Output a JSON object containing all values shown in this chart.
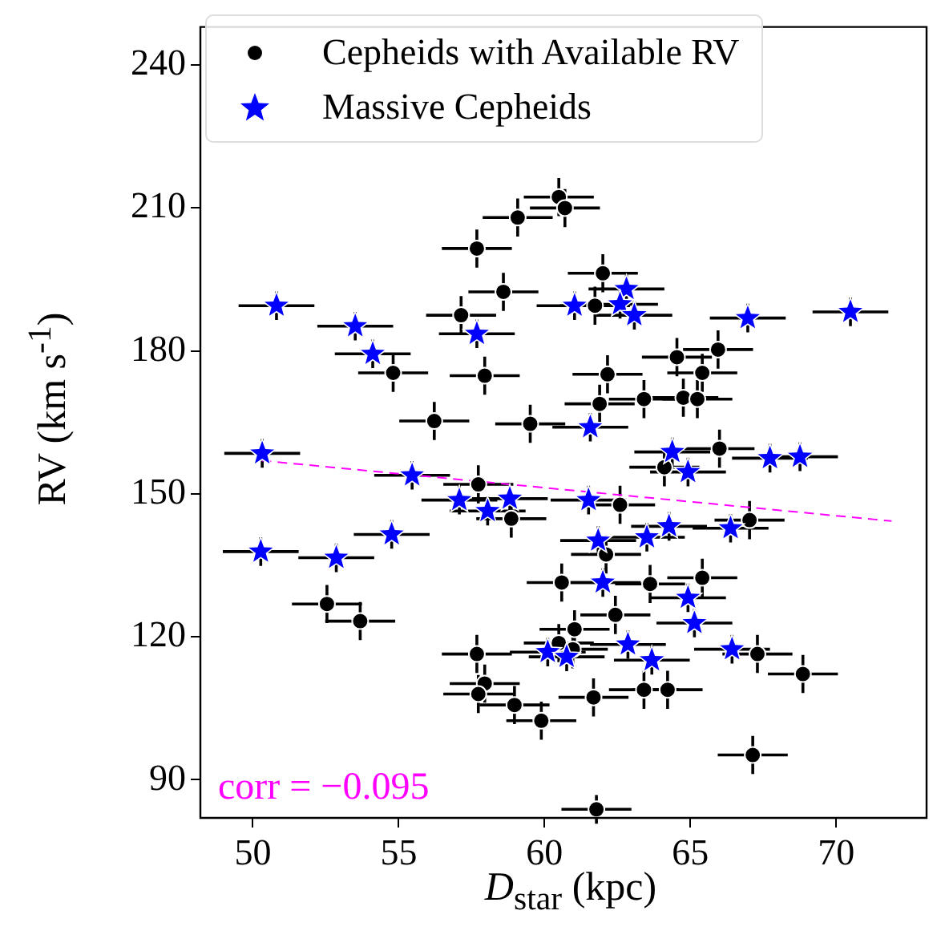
{
  "chart_data": {
    "type": "scatter",
    "xlabel": "D$_{star}$ (kpc)",
    "ylabel": "RV (km s$^{-1}$)",
    "xlim": [
      48.2,
      73.1
    ],
    "xticks": [
      50,
      55,
      60,
      65,
      70
    ],
    "ylim": [
      82,
      248
    ],
    "yticks": [
      90,
      120,
      150,
      180,
      210,
      240
    ],
    "legend": "top left",
    "annotations": [
      "corr = −0.095"
    ],
    "series": [
      {
        "name": "Cepheids with Available RV",
        "marker": "circle",
        "color": "#000000",
        "x": [
          60.49,
          60.7,
          59.08,
          57.68,
          58.59,
          57.14,
          62.0,
          61.73,
          57.95,
          54.81,
          64.54,
          65.95,
          65.41,
          62.16,
          61.89,
          63.41,
          64.76,
          65.24,
          56.22,
          59.51,
          66.0,
          64.11,
          57.73,
          58.86,
          62.59,
          67.03,
          52.54,
          53.68,
          60.59,
          62.11,
          63.62,
          65.41,
          62.43,
          61.03,
          60.49,
          60.97,
          67.3,
          68.86,
          57.68,
          57.95,
          57.73,
          58.97,
          59.89,
          61.68,
          63.41,
          64.22,
          67.14,
          61.78
        ],
        "values": [
          212.3,
          210.0,
          208.0,
          201.5,
          192.4,
          187.5,
          196.3,
          189.5,
          174.8,
          175.4,
          178.7,
          180.3,
          175.4,
          175.1,
          168.9,
          169.9,
          170.2,
          169.9,
          165.3,
          164.7,
          159.5,
          155.6,
          152.0,
          144.8,
          147.7,
          144.5,
          126.9,
          123.3,
          131.4,
          137.3,
          131.1,
          132.4,
          124.6,
          121.6,
          118.7,
          117.4,
          116.4,
          112.2,
          116.4,
          110.2,
          108.0,
          105.7,
          102.4,
          107.3,
          108.9,
          108.9,
          95.2,
          83.8
        ],
        "errors": [
          4,
          4,
          4,
          4,
          4,
          4,
          4,
          4,
          4,
          4,
          4,
          4,
          4,
          4,
          4,
          4,
          4,
          4,
          4,
          4,
          4,
          4,
          4,
          4,
          4,
          4,
          4,
          4,
          4,
          4,
          4,
          4,
          4,
          4,
          4,
          4,
          4,
          4,
          4,
          4,
          4,
          4,
          4,
          4,
          4,
          4,
          4,
          3
        ],
        "xerrors": [
          1.2,
          1.2,
          1.2,
          1.2,
          1.2,
          1.2,
          1.2,
          1.2,
          1.2,
          1.2,
          1.2,
          1.2,
          1.2,
          1.2,
          1.2,
          1.2,
          1.2,
          1.2,
          1.2,
          1.2,
          1.2,
          1.2,
          1.2,
          1.2,
          1.2,
          1.2,
          1.2,
          1.2,
          1.2,
          1.2,
          1.2,
          1.2,
          1.2,
          1.2,
          1.2,
          1.2,
          1.2,
          1.2,
          1.2,
          1.2,
          1.2,
          1.2,
          1.2,
          1.2,
          1.2,
          1.2,
          1.2,
          1.2
        ]
      },
      {
        "name": "Massive Cepheids",
        "marker": "star",
        "color": "#0000ff",
        "x": [
          50.81,
          53.51,
          54.11,
          57.68,
          50.32,
          55.46,
          62.81,
          61.03,
          62.59,
          63.08,
          66.97,
          70.49,
          61.57,
          64.38,
          64.92,
          67.73,
          68.76,
          57.08,
          58.05,
          58.81,
          54.76,
          50.27,
          52.86,
          60.11,
          61.51,
          64.27,
          63.51,
          61.84,
          66.38,
          62.0,
          64.92,
          65.14,
          62.86,
          60.76,
          63.68,
          66.43
        ],
        "values": [
          189.5,
          185.2,
          179.4,
          183.6,
          158.5,
          153.9,
          193.0,
          189.5,
          189.8,
          187.5,
          186.9,
          188.2,
          164.0,
          158.8,
          154.6,
          157.5,
          157.8,
          148.7,
          146.4,
          149.0,
          141.5,
          137.9,
          136.6,
          116.8,
          148.7,
          143.2,
          140.9,
          140.2,
          142.8,
          131.4,
          128.2,
          122.9,
          118.4,
          115.8,
          115.1,
          117.4
        ],
        "errors": [
          3,
          3,
          3,
          3,
          3,
          3,
          3,
          3,
          3,
          3,
          3,
          3,
          3,
          3,
          3,
          3,
          3,
          3,
          3,
          3,
          3,
          3,
          3,
          3,
          3,
          3,
          3,
          3,
          3,
          3,
          3,
          3,
          3,
          3,
          3,
          3
        ],
        "xerrors": [
          1.3,
          1.3,
          1.3,
          1.3,
          1.3,
          1.3,
          1.3,
          1.3,
          1.3,
          1.3,
          1.3,
          1.3,
          1.3,
          1.3,
          1.3,
          1.3,
          1.3,
          1.3,
          1.3,
          1.3,
          1.3,
          1.3,
          1.3,
          1.3,
          1.3,
          1.3,
          1.3,
          1.3,
          1.3,
          1.3,
          1.3,
          1.3,
          1.3,
          1.3,
          1.3,
          1.3
        ]
      },
      {
        "type": "line",
        "marker": "none",
        "line_style": "dashed",
        "color": "#ff00ff",
        "x": [
          50.3,
          71.9
        ],
        "values": [
          157.0,
          144.3
        ]
      }
    ]
  }
}
